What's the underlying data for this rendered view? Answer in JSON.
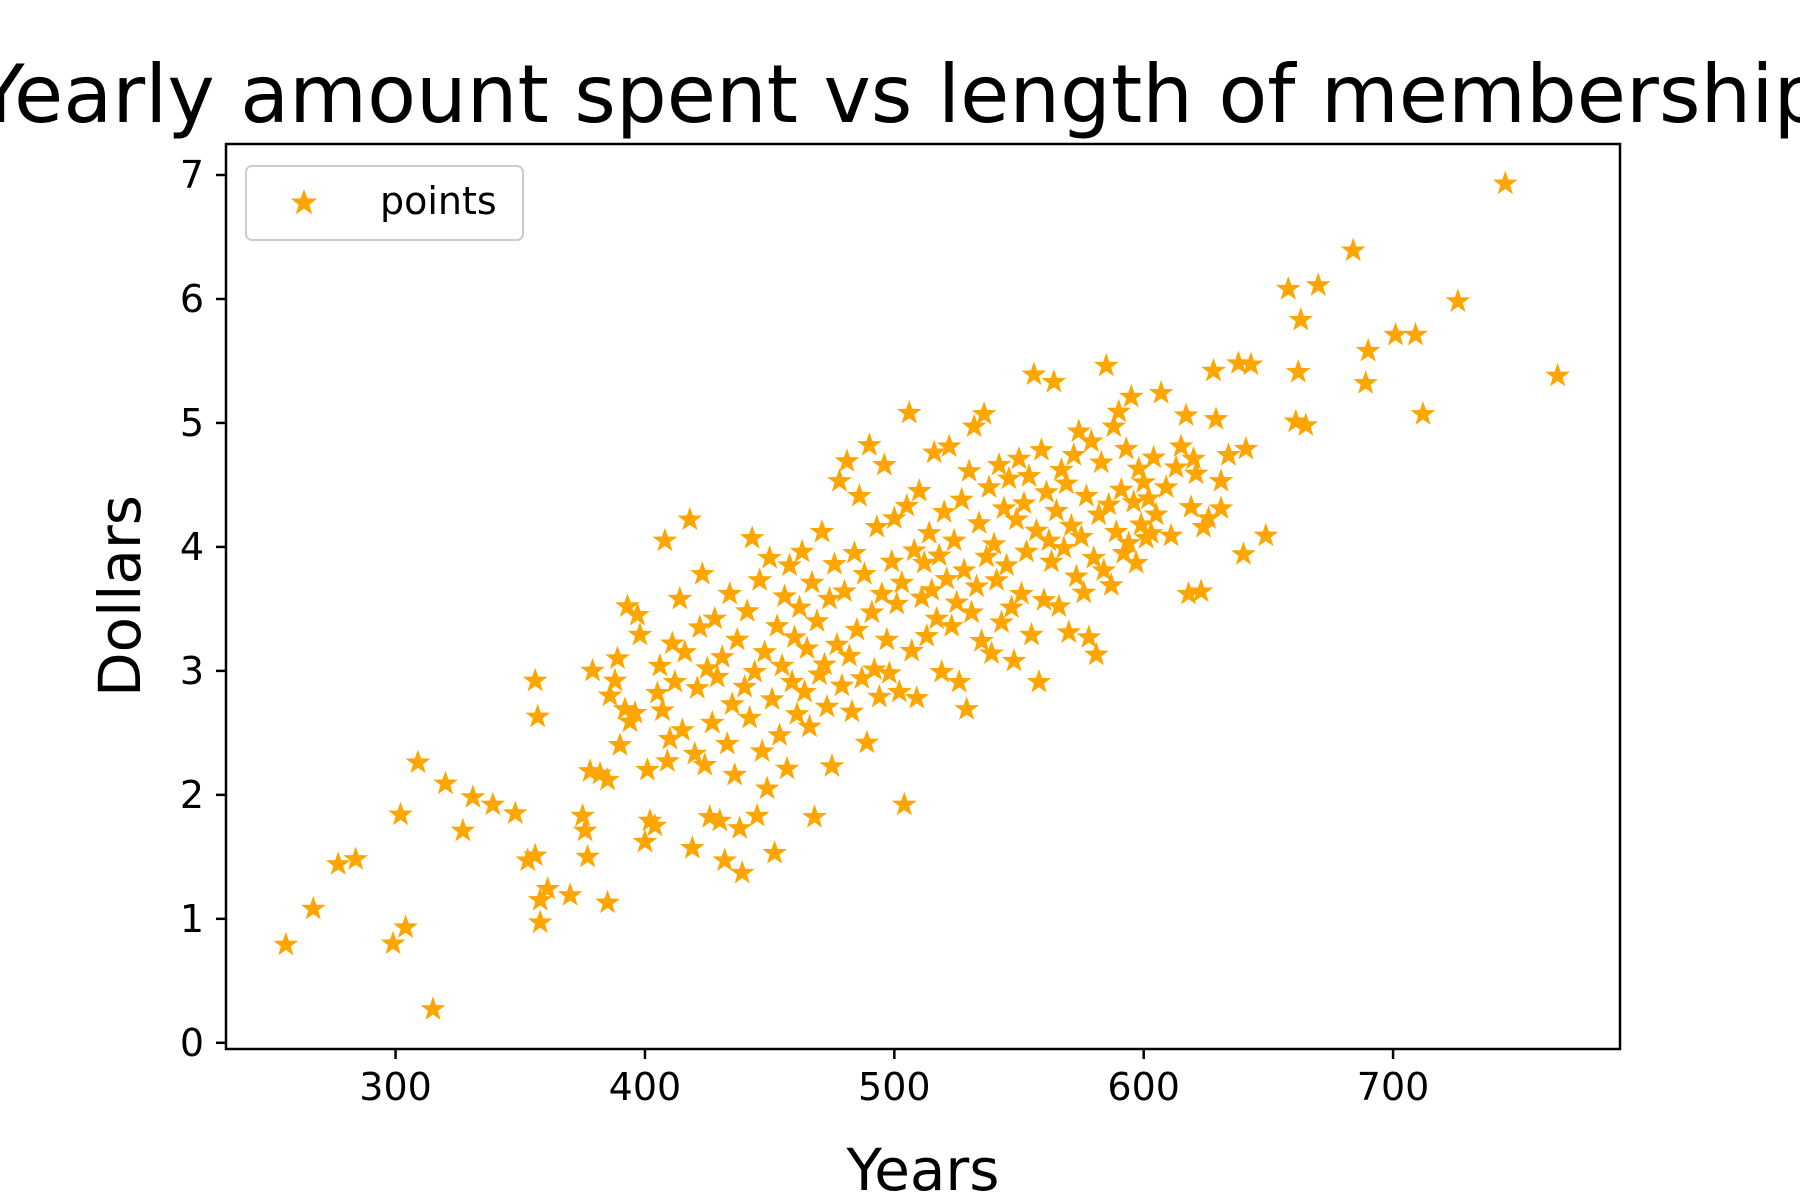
{
  "chart_data": {
    "type": "scatter",
    "title": "Yearly amount spent vs length of membership",
    "xlabel": "Years",
    "ylabel": "Dollars",
    "xlim": [
      232,
      791
    ],
    "ylim": [
      -0.05,
      7.25
    ],
    "xticks": [
      300,
      400,
      500,
      600,
      700
    ],
    "yticks": [
      0,
      1,
      2,
      3,
      4,
      5,
      6,
      7
    ],
    "xtick_labels": [
      "300",
      "400",
      "500",
      "600",
      "700"
    ],
    "ytick_labels": [
      "0",
      "1",
      "2",
      "3",
      "4",
      "5",
      "6",
      "7"
    ],
    "grid": false,
    "legend_position": "top-left",
    "series": [
      {
        "name": "points",
        "marker": "star",
        "color": "#FFA500",
        "points": [
          [
            256,
            0.79
          ],
          [
            267,
            1.08
          ],
          [
            277,
            1.44
          ],
          [
            284,
            1.48
          ],
          [
            299,
            0.8
          ],
          [
            304,
            0.93
          ],
          [
            302,
            1.84
          ],
          [
            309,
            2.26
          ],
          [
            315,
            0.27
          ],
          [
            320,
            2.09
          ],
          [
            327,
            1.71
          ],
          [
            331,
            1.98
          ],
          [
            339,
            1.92
          ],
          [
            348,
            1.85
          ],
          [
            353,
            1.47
          ],
          [
            356,
            1.51
          ],
          [
            356,
            2.92
          ],
          [
            357,
            2.63
          ],
          [
            358,
            0.97
          ],
          [
            358,
            1.15
          ],
          [
            361,
            1.24
          ],
          [
            370,
            1.19
          ],
          [
            375,
            1.83
          ],
          [
            376,
            1.71
          ],
          [
            377,
            1.5
          ],
          [
            378,
            2.19
          ],
          [
            379,
            3.0
          ],
          [
            382,
            2.17
          ],
          [
            385,
            2.12
          ],
          [
            385,
            1.13
          ],
          [
            386,
            2.8
          ],
          [
            388,
            2.92
          ],
          [
            389,
            3.1
          ],
          [
            390,
            2.4
          ],
          [
            392,
            2.69
          ],
          [
            393,
            3.52
          ],
          [
            394,
            2.59
          ],
          [
            396,
            2.66
          ],
          [
            397,
            3.45
          ],
          [
            398,
            3.29
          ],
          [
            400,
            1.62
          ],
          [
            401,
            2.2
          ],
          [
            402,
            1.79
          ],
          [
            404,
            1.75
          ],
          [
            405,
            2.82
          ],
          [
            406,
            3.04
          ],
          [
            407,
            2.68
          ],
          [
            408,
            4.05
          ],
          [
            409,
            2.27
          ],
          [
            410,
            2.45
          ],
          [
            411,
            3.22
          ],
          [
            412,
            2.91
          ],
          [
            414,
            3.58
          ],
          [
            415,
            2.52
          ],
          [
            416,
            3.15
          ],
          [
            418,
            4.22
          ],
          [
            419,
            1.57
          ],
          [
            420,
            2.33
          ],
          [
            421,
            2.86
          ],
          [
            422,
            3.35
          ],
          [
            423,
            3.78
          ],
          [
            424,
            2.24
          ],
          [
            425,
            3.02
          ],
          [
            426,
            1.82
          ],
          [
            427,
            2.58
          ],
          [
            428,
            3.42
          ],
          [
            429,
            2.95
          ],
          [
            430,
            1.79
          ],
          [
            431,
            3.11
          ],
          [
            432,
            1.47
          ],
          [
            433,
            2.41
          ],
          [
            434,
            3.62
          ],
          [
            435,
            2.73
          ],
          [
            436,
            2.16
          ],
          [
            437,
            3.25
          ],
          [
            438,
            1.73
          ],
          [
            439,
            1.37
          ],
          [
            440,
            2.87
          ],
          [
            441,
            3.48
          ],
          [
            442,
            2.62
          ],
          [
            443,
            4.07
          ],
          [
            444,
            2.99
          ],
          [
            445,
            1.83
          ],
          [
            446,
            3.73
          ],
          [
            447,
            2.35
          ],
          [
            448,
            3.15
          ],
          [
            449,
            2.05
          ],
          [
            450,
            3.91
          ],
          [
            451,
            2.77
          ],
          [
            452,
            1.53
          ],
          [
            453,
            3.36
          ],
          [
            454,
            2.48
          ],
          [
            455,
            3.04
          ],
          [
            456,
            3.6
          ],
          [
            457,
            2.21
          ],
          [
            458,
            3.85
          ],
          [
            459,
            2.91
          ],
          [
            460,
            3.27
          ],
          [
            461,
            2.65
          ],
          [
            462,
            3.51
          ],
          [
            463,
            3.96
          ],
          [
            464,
            2.83
          ],
          [
            465,
            3.18
          ],
          [
            466,
            2.55
          ],
          [
            467,
            3.71
          ],
          [
            468,
            1.82
          ],
          [
            469,
            3.4
          ],
          [
            470,
            2.97
          ],
          [
            471,
            4.12
          ],
          [
            472,
            3.05
          ],
          [
            473,
            2.71
          ],
          [
            474,
            3.58
          ],
          [
            475,
            2.23
          ],
          [
            476,
            3.86
          ],
          [
            477,
            3.21
          ],
          [
            478,
            4.53
          ],
          [
            479,
            2.88
          ],
          [
            480,
            3.64
          ],
          [
            481,
            4.69
          ],
          [
            482,
            3.12
          ],
          [
            483,
            2.67
          ],
          [
            484,
            3.95
          ],
          [
            485,
            3.33
          ],
          [
            486,
            4.41
          ],
          [
            487,
            2.94
          ],
          [
            488,
            3.78
          ],
          [
            489,
            2.42
          ],
          [
            490,
            4.82
          ],
          [
            491,
            3.47
          ],
          [
            492,
            3.01
          ],
          [
            493,
            4.16
          ],
          [
            494,
            2.79
          ],
          [
            495,
            3.62
          ],
          [
            496,
            4.66
          ],
          [
            497,
            3.25
          ],
          [
            498,
            2.98
          ],
          [
            499,
            3.88
          ],
          [
            500,
            4.23
          ],
          [
            501,
            3.54
          ],
          [
            502,
            2.83
          ],
          [
            503,
            3.71
          ],
          [
            504,
            1.92
          ],
          [
            505,
            4.33
          ],
          [
            506,
            5.08
          ],
          [
            507,
            3.16
          ],
          [
            508,
            3.97
          ],
          [
            509,
            2.78
          ],
          [
            510,
            4.45
          ],
          [
            511,
            3.59
          ],
          [
            512,
            3.87
          ],
          [
            513,
            3.28
          ],
          [
            514,
            4.11
          ],
          [
            515,
            3.65
          ],
          [
            516,
            4.76
          ],
          [
            517,
            3.42
          ],
          [
            518,
            3.93
          ],
          [
            519,
            2.99
          ],
          [
            520,
            4.28
          ],
          [
            521,
            3.74
          ],
          [
            522,
            4.81
          ],
          [
            523,
            3.36
          ],
          [
            524,
            4.05
          ],
          [
            525,
            3.55
          ],
          [
            526,
            2.91
          ],
          [
            527,
            4.38
          ],
          [
            528,
            3.81
          ],
          [
            529,
            2.69
          ],
          [
            530,
            4.61
          ],
          [
            531,
            3.47
          ],
          [
            532,
            4.97
          ],
          [
            533,
            3.68
          ],
          [
            534,
            4.19
          ],
          [
            535,
            3.24
          ],
          [
            536,
            5.07
          ],
          [
            537,
            3.92
          ],
          [
            538,
            4.48
          ],
          [
            539,
            3.14
          ],
          [
            540,
            4.02
          ],
          [
            541,
            3.73
          ],
          [
            542,
            4.66
          ],
          [
            543,
            3.39
          ],
          [
            544,
            4.31
          ],
          [
            545,
            3.85
          ],
          [
            546,
            4.55
          ],
          [
            547,
            3.51
          ],
          [
            548,
            3.08
          ],
          [
            549,
            4.22
          ],
          [
            550,
            4.71
          ],
          [
            551,
            3.62
          ],
          [
            552,
            4.35
          ],
          [
            553,
            3.96
          ],
          [
            554,
            4.57
          ],
          [
            555,
            3.29
          ],
          [
            556,
            5.39
          ],
          [
            557,
            4.13
          ],
          [
            558,
            2.91
          ],
          [
            559,
            4.78
          ],
          [
            560,
            3.57
          ],
          [
            561,
            4.44
          ],
          [
            562,
            4.05
          ],
          [
            563,
            3.88
          ],
          [
            564,
            5.33
          ],
          [
            565,
            4.29
          ],
          [
            566,
            3.52
          ],
          [
            567,
            4.62
          ],
          [
            568,
            3.99
          ],
          [
            569,
            4.51
          ],
          [
            570,
            3.31
          ],
          [
            571,
            4.17
          ],
          [
            572,
            4.74
          ],
          [
            573,
            3.76
          ],
          [
            574,
            4.93
          ],
          [
            575,
            4.08
          ],
          [
            576,
            3.63
          ],
          [
            577,
            4.41
          ],
          [
            578,
            3.27
          ],
          [
            579,
            4.85
          ],
          [
            580,
            3.91
          ],
          [
            581,
            3.13
          ],
          [
            582,
            4.26
          ],
          [
            583,
            4.68
          ],
          [
            584,
            3.81
          ],
          [
            585,
            5.46
          ],
          [
            586,
            4.34
          ],
          [
            587,
            3.69
          ],
          [
            588,
            4.97
          ],
          [
            589,
            4.12
          ],
          [
            590,
            5.09
          ],
          [
            591,
            4.46
          ],
          [
            592,
            3.95
          ],
          [
            593,
            4.79
          ],
          [
            594,
            4.03
          ],
          [
            595,
            5.21
          ],
          [
            596,
            4.36
          ],
          [
            597,
            3.87
          ],
          [
            598,
            4.63
          ],
          [
            599,
            4.18
          ],
          [
            600,
            4.52
          ],
          [
            601,
            4.07
          ],
          [
            602,
            4.39
          ],
          [
            603,
            4.11
          ],
          [
            604,
            4.72
          ],
          [
            605,
            4.26
          ],
          [
            607,
            5.24
          ],
          [
            609,
            4.48
          ],
          [
            611,
            4.09
          ],
          [
            613,
            4.64
          ],
          [
            615,
            4.81
          ],
          [
            617,
            5.06
          ],
          [
            618,
            3.62
          ],
          [
            619,
            4.32
          ],
          [
            620,
            4.71
          ],
          [
            621,
            4.59
          ],
          [
            623,
            3.64
          ],
          [
            624,
            4.16
          ],
          [
            626,
            4.23
          ],
          [
            628,
            5.42
          ],
          [
            629,
            5.03
          ],
          [
            631,
            4.31
          ],
          [
            631,
            4.53
          ],
          [
            634,
            4.74
          ],
          [
            638,
            5.48
          ],
          [
            640,
            3.94
          ],
          [
            641,
            4.79
          ],
          [
            643,
            5.47
          ],
          [
            649,
            4.09
          ],
          [
            658,
            6.08
          ],
          [
            661,
            5.01
          ],
          [
            662,
            5.41
          ],
          [
            663,
            5.83
          ],
          [
            665,
            4.98
          ],
          [
            670,
            6.11
          ],
          [
            684,
            6.39
          ],
          [
            689,
            5.32
          ],
          [
            690,
            5.58
          ],
          [
            701,
            5.71
          ],
          [
            709,
            5.71
          ],
          [
            712,
            5.07
          ],
          [
            726,
            5.98
          ],
          [
            745,
            6.93
          ],
          [
            766,
            5.38
          ]
        ]
      }
    ]
  }
}
